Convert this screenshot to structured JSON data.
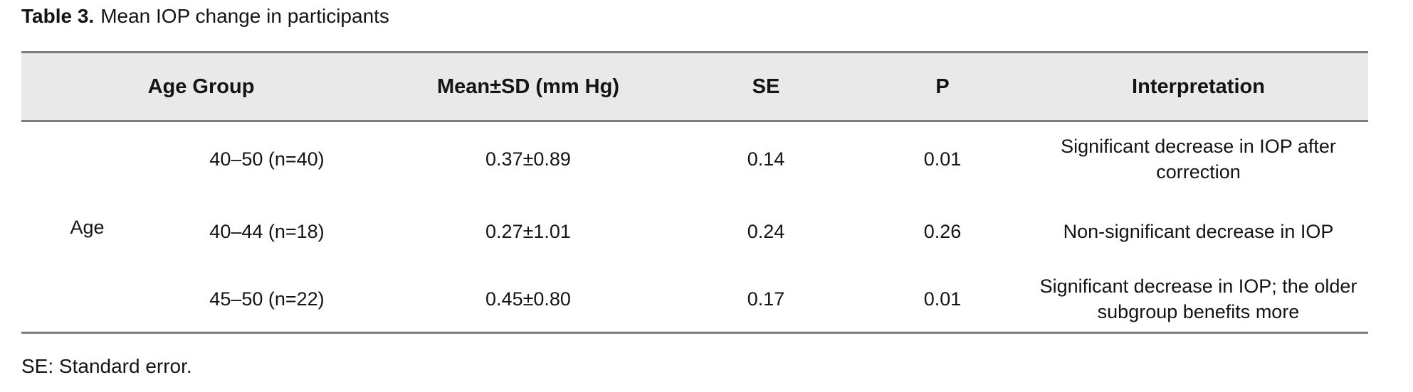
{
  "caption": {
    "label": "Table 3.",
    "text": "Mean IOP change in participants"
  },
  "table": {
    "headers": {
      "age_group": "Age Group",
      "mean_sd": "Mean±SD (mm Hg)",
      "se": "SE",
      "p": "P",
      "interpretation": "Interpretation"
    },
    "row_label": "Age",
    "rows": [
      {
        "group": "40–50 (n=40)",
        "mean_sd": "0.37±0.89",
        "se": "0.14",
        "p": "0.01",
        "interpretation": "Significant decrease in IOP after correction"
      },
      {
        "group": "40–44 (n=18)",
        "mean_sd": "0.27±1.01",
        "se": "0.24",
        "p": "0.26",
        "interpretation": "Non-significant decrease in IOP"
      },
      {
        "group": "45–50 (n=22)",
        "mean_sd": "0.45±0.80",
        "se": "0.17",
        "p": "0.01",
        "interpretation": "Significant decrease in IOP; the older subgroup benefits more"
      }
    ]
  },
  "footnote": {
    "text": "SE: Standard error."
  },
  "colors": {
    "header_bg": "#e9e9ea",
    "rule": "#7d7d7d",
    "text": "#141414",
    "background": "#ffffff"
  }
}
